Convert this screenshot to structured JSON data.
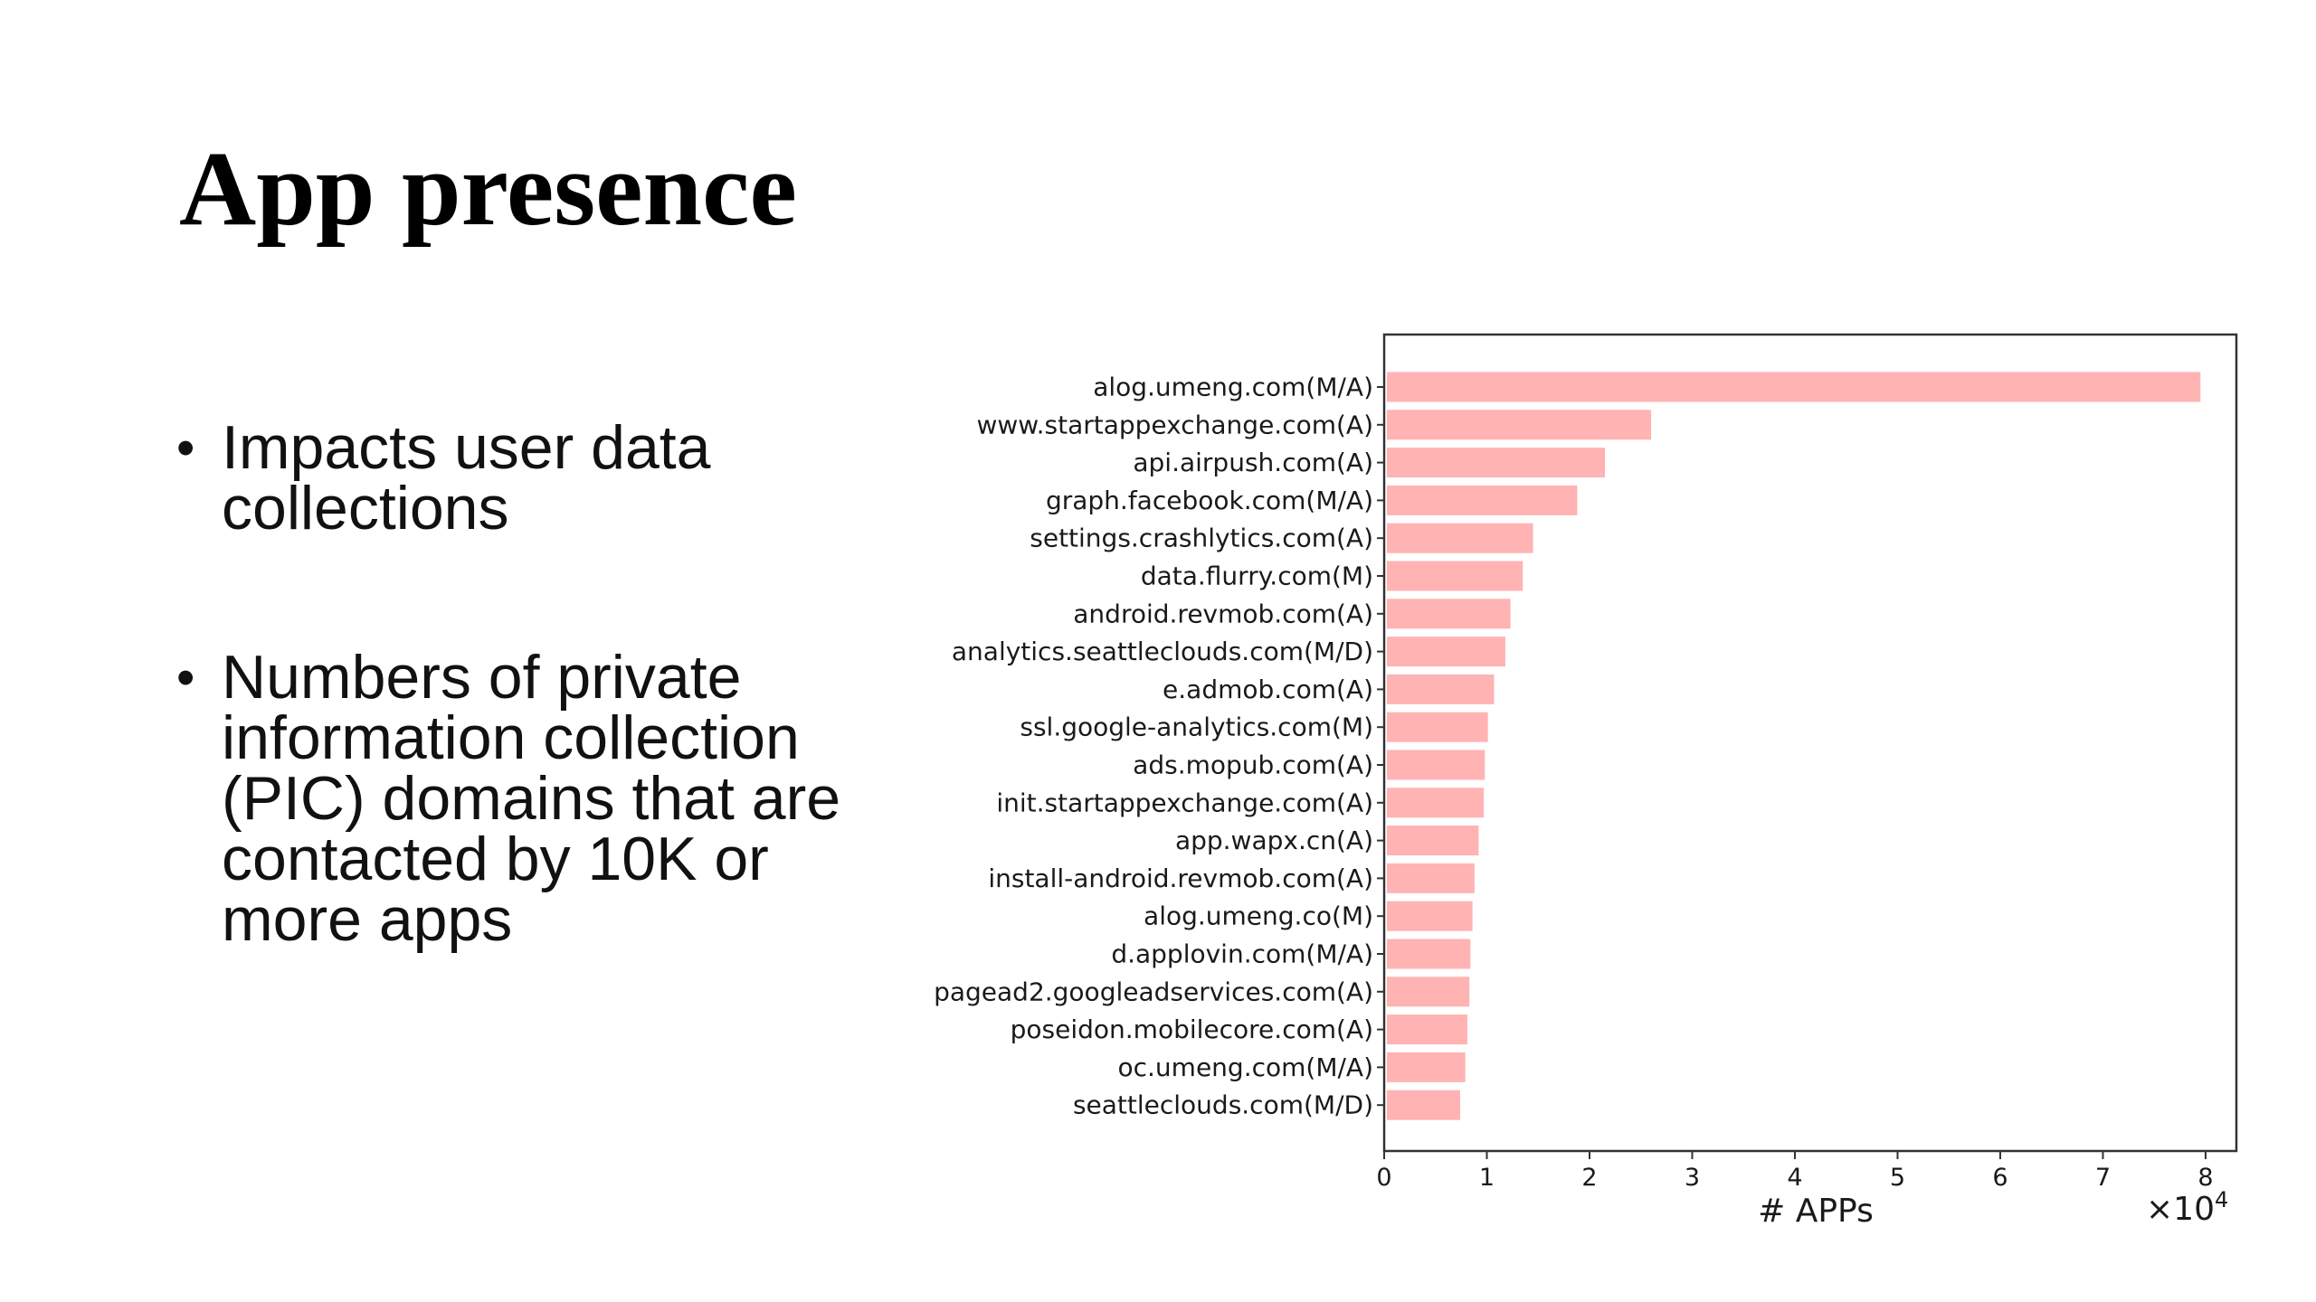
{
  "slide": {
    "title": "App presence",
    "bullets": [
      {
        "text": " Impacts user data collections"
      },
      {
        "text": "Numbers of private information collection (PIC) domains that are contacted by 10K or more apps"
      }
    ]
  },
  "chart_data": {
    "type": "bar",
    "orientation": "horizontal",
    "title": "",
    "xlabel": "# APPs",
    "ylabel": "",
    "x_multiplier": "×10",
    "x_multiplier_exponent": "4",
    "xlim": [
      0,
      83000
    ],
    "xticks": [
      0,
      1,
      2,
      3,
      4,
      5,
      6,
      7,
      8
    ],
    "bar_color": "#ffb3b3",
    "categories": [
      "alog.umeng.com(M/A)",
      "www.startappexchange.com(A)",
      "api.airpush.com(A)",
      "graph.facebook.com(M/A)",
      "settings.crashlytics.com(A)",
      "data.flurry.com(M)",
      "android.revmob.com(A)",
      "analytics.seattleclouds.com(M/D)",
      "e.admob.com(A)",
      "ssl.google-analytics.com(M)",
      "ads.mopub.com(A)",
      "init.startappexchange.com(A)",
      "app.wapx.cn(A)",
      "install-android.revmob.com(A)",
      "alog.umeng.co(M)",
      "d.applovin.com(M/A)",
      "pagead2.googleadservices.com(A)",
      "poseidon.mobilecore.com(A)",
      "oc.umeng.com(M/A)",
      "seattleclouds.com(M/D)"
    ],
    "values": [
      79500,
      26000,
      21500,
      18800,
      14500,
      13500,
      12300,
      11800,
      10700,
      10100,
      9800,
      9700,
      9200,
      8800,
      8600,
      8400,
      8300,
      8100,
      7900,
      7400
    ],
    "grid": false
  }
}
